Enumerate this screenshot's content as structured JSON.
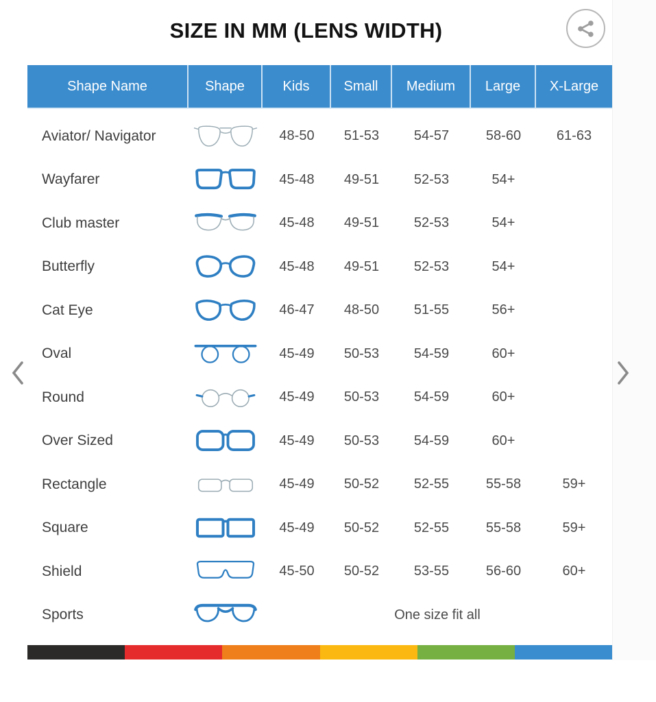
{
  "title": "SIZE IN MM (LENS WIDTH)",
  "icons": {
    "share": "share-icon",
    "prev": "chevron-left-icon",
    "next": "chevron-right-icon"
  },
  "table": {
    "columns": [
      "Shape Name",
      "Shape",
      "Kids",
      "Small",
      "Medium",
      "Large",
      "X-Large"
    ],
    "rows": [
      {
        "name": "Aviator/ Navigator",
        "icon": "aviator-glasses-icon",
        "sizes": [
          "48-50",
          "51-53",
          "54-57",
          "58-60",
          "61-63"
        ]
      },
      {
        "name": "Wayfarer",
        "icon": "wayfarer-glasses-icon",
        "sizes": [
          "45-48",
          "49-51",
          "52-53",
          "54+",
          ""
        ]
      },
      {
        "name": "Club master",
        "icon": "clubmaster-glasses-icon",
        "sizes": [
          "45-48",
          "49-51",
          "52-53",
          "54+",
          ""
        ]
      },
      {
        "name": "Butterfly",
        "icon": "butterfly-glasses-icon",
        "sizes": [
          "45-48",
          "49-51",
          "52-53",
          "54+",
          ""
        ]
      },
      {
        "name": "Cat Eye",
        "icon": "cateye-glasses-icon",
        "sizes": [
          "46-47",
          "48-50",
          "51-55",
          "56+",
          ""
        ]
      },
      {
        "name": "Oval",
        "icon": "oval-glasses-icon",
        "sizes": [
          "45-49",
          "50-53",
          "54-59",
          "60+",
          ""
        ]
      },
      {
        "name": "Round",
        "icon": "round-glasses-icon",
        "sizes": [
          "45-49",
          "50-53",
          "54-59",
          "60+",
          ""
        ]
      },
      {
        "name": "Over Sized",
        "icon": "oversized-glasses-icon",
        "sizes": [
          "45-49",
          "50-53",
          "54-59",
          "60+",
          ""
        ]
      },
      {
        "name": "Rectangle",
        "icon": "rectangle-glasses-icon",
        "sizes": [
          "45-49",
          "50-52",
          "52-55",
          "55-58",
          "59+"
        ]
      },
      {
        "name": "Square",
        "icon": "square-glasses-icon",
        "sizes": [
          "45-49",
          "50-52",
          "52-55",
          "55-58",
          "59+"
        ]
      },
      {
        "name": "Shield",
        "icon": "shield-glasses-icon",
        "sizes": [
          "45-50",
          "50-52",
          "53-55",
          "56-60",
          "60+"
        ]
      },
      {
        "name": "Sports",
        "icon": "sports-glasses-icon",
        "span_text": "One size fit all"
      }
    ]
  },
  "colors": {
    "header_bg": "#3b8ccd",
    "header_text": "#ffffff",
    "frame_blue": "#2e7fc3",
    "frame_gray": "#9cadb5",
    "chevron_gray": "#8a8a8a",
    "share_gray": "#9e9e9e",
    "stripe": [
      "#2b2a29",
      "#e62b2c",
      "#ef7f1a",
      "#fbb810",
      "#76b043",
      "#3a8dce"
    ]
  }
}
